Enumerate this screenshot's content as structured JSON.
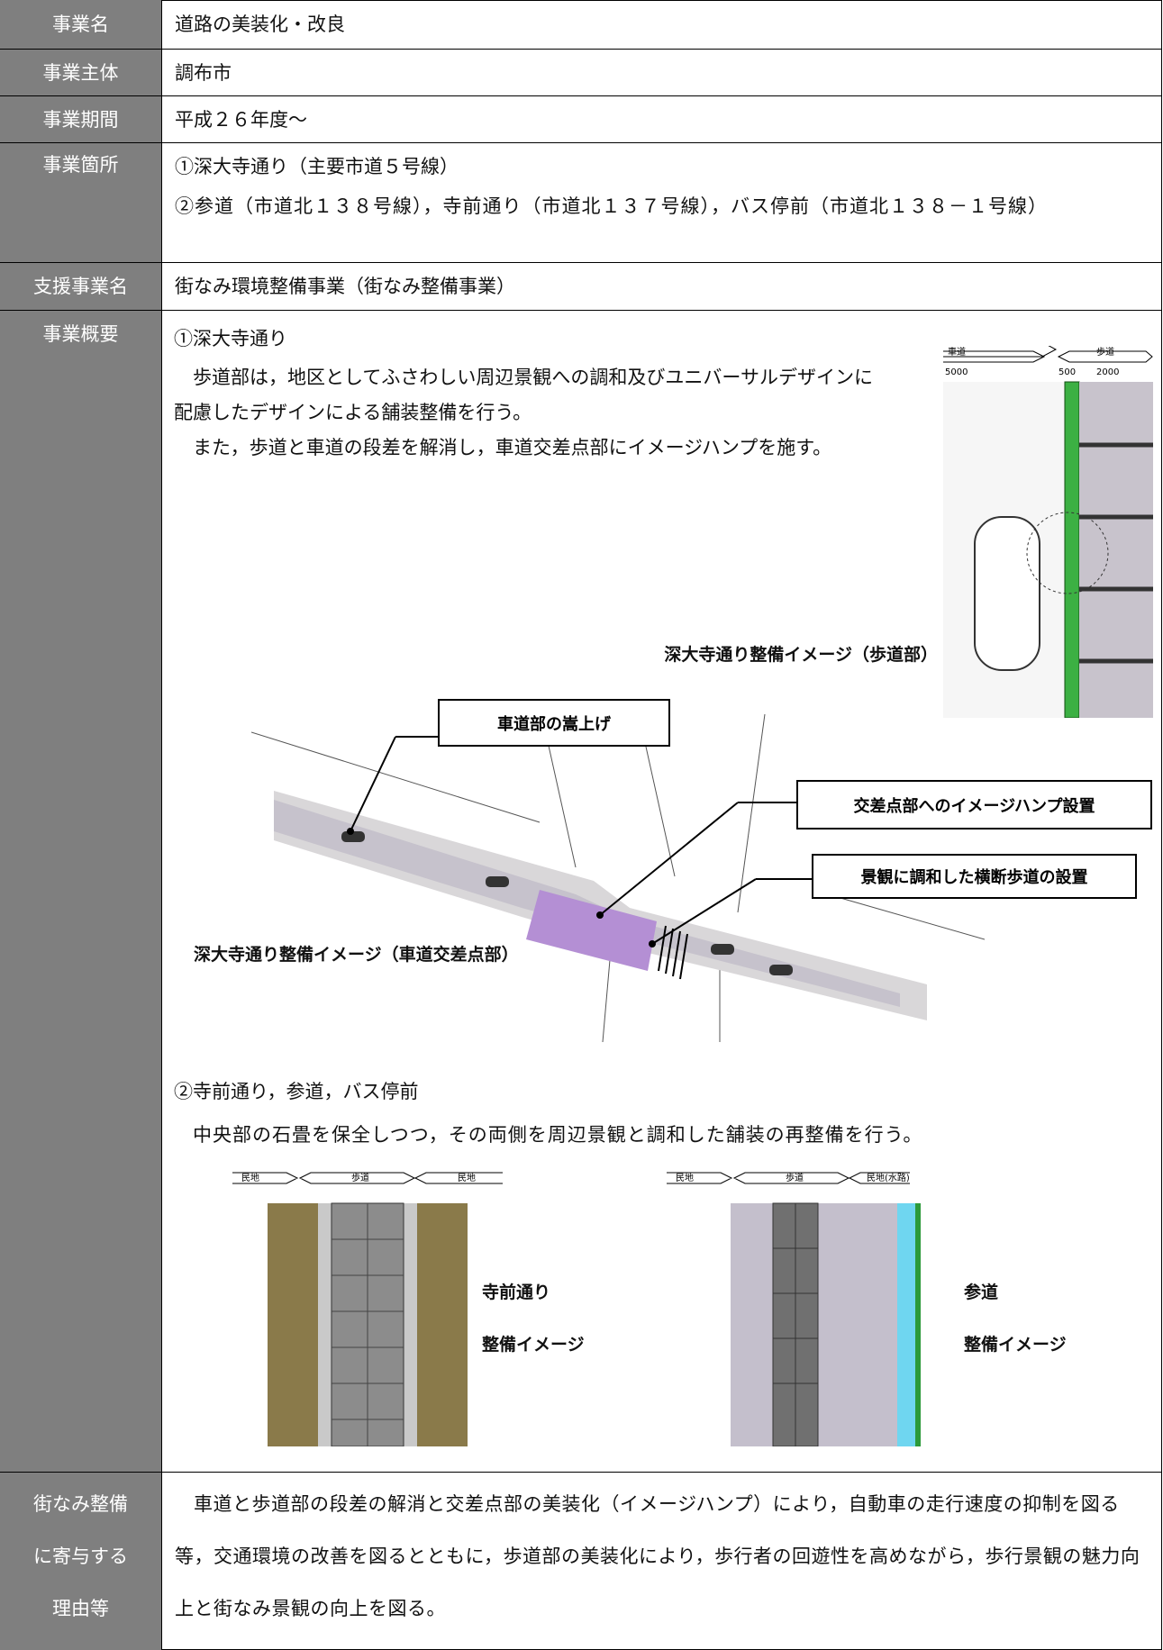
{
  "table": {
    "rows": [
      {
        "label": "事業名",
        "content": "道路の美装化・改良"
      },
      {
        "label": "事業主体",
        "content": "調布市"
      },
      {
        "label": "事業期間",
        "content": "平成２６年度〜"
      },
      {
        "label": "事業箇所",
        "content": [
          "①深大寺通り（主要市道５号線）",
          "②参道（市道北１３８号線），寺前通り（市道北１３７号線），バス停前（市道北１３８－１号線）"
        ]
      },
      {
        "label": "支援事業名",
        "content": "街なみ環境整備事業（街なみ整備事業）"
      },
      {
        "label": "事業概要",
        "content": {
          "heading1": "①深大寺通り",
          "para1": "歩道部は，地区としてふさわしい周辺景観への調和及びユニバーサルデザインに配慮したデザインによる舗装整備を行う。",
          "para2": "また，歩道と車道の段差を解消し，車道交差点部にイメージハンプを施す。",
          "figure1": {
            "caption": "深大寺通り整備イメージ（歩道部）",
            "labels": [
              "車道",
              "歩道",
              "5000",
              "500",
              "2000"
            ]
          },
          "figure2": {
            "caption": "深大寺通り整備イメージ（車道交差点部）",
            "callouts": [
              "車道部の嵩上げ",
              "交差点部へのイメージハンプ設置",
              "景観に調和した横断歩道の設置"
            ]
          },
          "heading2": "②寺前通り，参道，バス停前",
          "para3": "中央部の石畳を保全しつつ，その両側を周辺景観と調和した舗装の再整備を行う。",
          "figure3": {
            "caption": [
              "寺前通り",
              "整備イメージ"
            ],
            "labels": [
              "民地",
              "歩道",
              "民地"
            ]
          },
          "figure4": {
            "caption": [
              "参道",
              "整備イメージ"
            ],
            "labels": [
              "民地",
              "歩道",
              "民地(水路)"
            ]
          }
        }
      },
      {
        "label": [
          "街なみ整備",
          "に寄与する",
          "理由等"
        ],
        "content": "車道と歩道部の段差の解消と交差点部の美装化（イメージハンプ）により，自動車の走行速度の抑制を図る等，交通環境の改善を図るとともに，歩道部の美装化により，歩行者の回遊性を高めながら，歩行景観の魅力向上と街なみ景観の向上を図る。"
      }
    ]
  }
}
